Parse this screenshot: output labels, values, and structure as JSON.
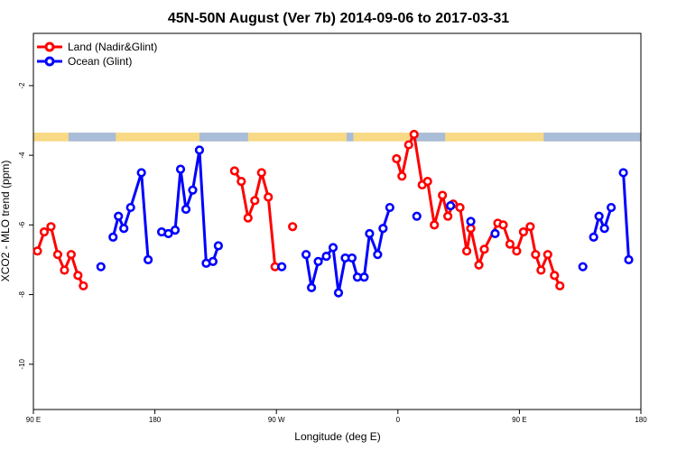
{
  "chart_data": {
    "type": "line",
    "title": "45N-50N August (Ver 7b)   2014-09-06 to 2017-03-31",
    "xlabel": "Longitude (deg E)",
    "ylabel": "XCO2 - MLO trend (ppm)",
    "xlim": [
      90,
      540
    ],
    "ylim": [
      -11.3,
      -0.5
    ],
    "x_ticks": [
      {
        "value": 90,
        "label": "90 E"
      },
      {
        "value": 180,
        "label": "180"
      },
      {
        "value": 270,
        "label": "90 W"
      },
      {
        "value": 360,
        "label": "0"
      },
      {
        "value": 450,
        "label": "90 E"
      },
      {
        "value": 540,
        "label": "180"
      }
    ],
    "y_ticks": [
      {
        "value": -2,
        "label": "-2"
      },
      {
        "value": -4,
        "label": "-4"
      },
      {
        "value": -6,
        "label": "-6"
      },
      {
        "value": -8,
        "label": "-8"
      },
      {
        "value": -10,
        "label": "-10"
      }
    ],
    "grid": false,
    "legend": {
      "position": "top-left",
      "entries": [
        {
          "name": "Land (Nadir&Glint)",
          "color": "#ff0000"
        },
        {
          "name": "Ocean (Glint)",
          "color": "#0000ff"
        }
      ]
    },
    "land_band": {
      "y_range": [
        -3.6,
        -3.35
      ],
      "land_color": "#f8d985",
      "ocean_color": "#a9bcd8"
    },
    "series": [
      {
        "name": "Land (Nadir&Glint)",
        "color": "#ff0000",
        "segments": [
          [
            [
              93,
              -6.75
            ],
            [
              98,
              -6.2
            ],
            [
              103,
              -6.05
            ],
            [
              108,
              -6.85
            ],
            [
              113,
              -7.3
            ],
            [
              118,
              -6.85
            ],
            [
              123,
              -7.45
            ],
            [
              127,
              -7.75
            ]
          ],
          [
            [
              239,
              -4.45
            ],
            [
              244,
              -4.75
            ],
            [
              249,
              -5.8
            ],
            [
              254,
              -5.3
            ],
            [
              259,
              -4.5
            ],
            [
              264,
              -5.2
            ],
            [
              269,
              -7.2
            ]
          ],
          [
            [
              282,
              -6.05
            ]
          ],
          [
            [
              359,
              -4.1
            ],
            [
              363,
              -4.6
            ],
            [
              368,
              -3.7
            ],
            [
              372,
              -3.4
            ],
            [
              378,
              -4.85
            ],
            [
              382,
              -4.75
            ],
            [
              387,
              -6.0
            ],
            [
              393,
              -5.15
            ],
            [
              397,
              -5.75
            ],
            [
              401,
              -5.4
            ],
            [
              406,
              -5.5
            ],
            [
              411,
              -6.75
            ],
            [
              414,
              -6.1
            ],
            [
              420,
              -7.15
            ],
            [
              424,
              -6.7
            ],
            [
              434,
              -5.95
            ],
            [
              438,
              -6.0
            ],
            [
              443,
              -6.55
            ],
            [
              448,
              -6.75
            ],
            [
              453,
              -6.2
            ],
            [
              458,
              -6.05
            ],
            [
              462,
              -6.85
            ],
            [
              466,
              -7.3
            ],
            [
              471,
              -6.85
            ],
            [
              476,
              -7.45
            ],
            [
              480,
              -7.75
            ]
          ]
        ]
      },
      {
        "name": "Ocean (Glint)",
        "color": "#0000ff",
        "segments": [
          [
            [
              140,
              -7.2
            ]
          ],
          [
            [
              149,
              -6.35
            ],
            [
              153,
              -5.75
            ],
            [
              157,
              -6.1
            ],
            [
              162,
              -5.5
            ],
            [
              170,
              -4.5
            ],
            [
              175,
              -7.0
            ]
          ],
          [
            [
              185,
              -6.2
            ],
            [
              190,
              -6.25
            ],
            [
              195,
              -6.15
            ],
            [
              199,
              -4.4
            ],
            [
              203,
              -5.55
            ],
            [
              208,
              -5.0
            ],
            [
              213,
              -3.85
            ],
            [
              218,
              -7.1
            ],
            [
              223,
              -7.05
            ],
            [
              227,
              -6.6
            ]
          ],
          [
            [
              274,
              -7.2
            ]
          ],
          [
            [
              292,
              -6.85
            ],
            [
              296,
              -7.8
            ],
            [
              301,
              -7.05
            ],
            [
              307,
              -6.9
            ],
            [
              312,
              -6.65
            ],
            [
              316,
              -7.95
            ],
            [
              321,
              -6.95
            ],
            [
              326,
              -6.95
            ],
            [
              330,
              -7.5
            ],
            [
              335,
              -7.5
            ],
            [
              339,
              -6.25
            ],
            [
              345,
              -6.85
            ],
            [
              349,
              -6.1
            ],
            [
              354,
              -5.5
            ]
          ],
          [
            [
              374,
              -5.75
            ]
          ],
          [
            [
              399,
              -5.45
            ]
          ],
          [
            [
              414,
              -5.9
            ]
          ],
          [
            [
              432,
              -6.25
            ]
          ],
          [
            [
              497,
              -7.2
            ]
          ],
          [
            [
              505,
              -6.35
            ],
            [
              509,
              -5.75
            ],
            [
              513,
              -6.1
            ],
            [
              518,
              -5.5
            ]
          ],
          [
            [
              527,
              -4.5
            ],
            [
              531,
              -7.0
            ]
          ]
        ]
      }
    ]
  }
}
